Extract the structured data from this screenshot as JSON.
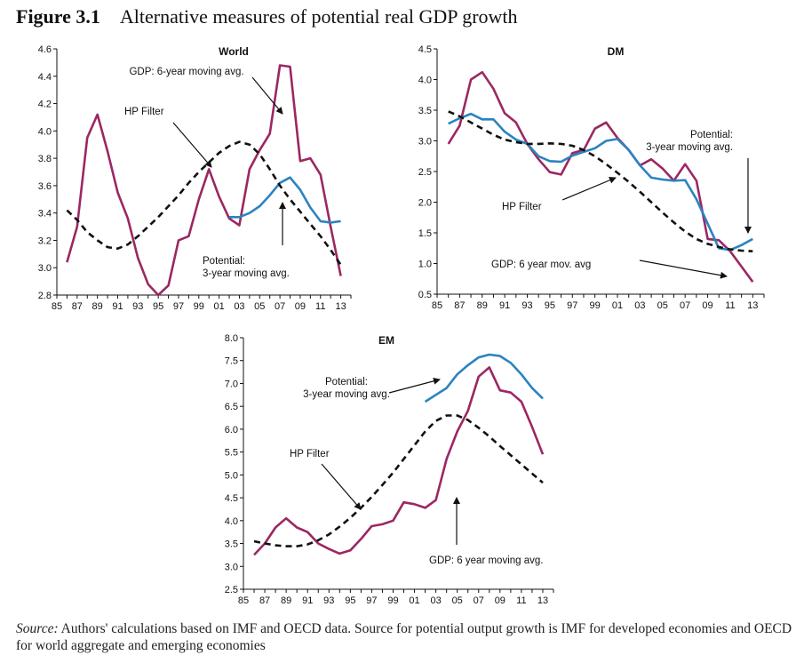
{
  "figure": {
    "number": "Figure 3.1",
    "title": "Alternative measures of potential real GDP growth"
  },
  "colors": {
    "gdp": "#9b2763",
    "potential": "#2b83c0",
    "hp": "#111111"
  },
  "chart_data": [
    {
      "type": "line",
      "title": "World",
      "x_ticks": [
        "85",
        "87",
        "89",
        "91",
        "93",
        "95",
        "97",
        "99",
        "01",
        "03",
        "05",
        "07",
        "09",
        "11",
        "13"
      ],
      "ylim": [
        2.8,
        4.6
      ],
      "y_ticks": [
        "2.8",
        "3.0",
        "3.2",
        "3.4",
        "3.6",
        "3.8",
        "4.0",
        "4.2",
        "4.4",
        "4.6"
      ],
      "series": [
        {
          "key": "gdp",
          "x": [
            1986,
            1987,
            1988,
            1989,
            1990,
            1991,
            1992,
            1993,
            1994,
            1995,
            1996,
            1997,
            1998,
            1999,
            2000,
            2001,
            2002,
            2003,
            2004,
            2005,
            2006,
            2007,
            2008,
            2009,
            2010,
            2011,
            2012,
            2013
          ],
          "y": [
            3.04,
            3.3,
            3.95,
            4.12,
            3.85,
            3.55,
            3.36,
            3.07,
            2.88,
            2.8,
            2.87,
            3.2,
            3.23,
            3.5,
            3.72,
            3.52,
            3.36,
            3.31,
            3.72,
            3.86,
            3.98,
            4.48,
            4.47,
            3.78,
            3.8,
            3.68,
            3.3,
            2.94
          ]
        },
        {
          "key": "potential",
          "x": [
            2002,
            2003,
            2004,
            2005,
            2006,
            2007,
            2008,
            2009,
            2010,
            2011,
            2012,
            2013
          ],
          "y": [
            3.37,
            3.37,
            3.4,
            3.45,
            3.53,
            3.62,
            3.66,
            3.57,
            3.44,
            3.34,
            3.33,
            3.34
          ]
        },
        {
          "key": "hp",
          "x": [
            1986,
            1987,
            1988,
            1989,
            1990,
            1991,
            1992,
            1993,
            1994,
            1995,
            1996,
            1997,
            1998,
            1999,
            2000,
            2001,
            2002,
            2003,
            2004,
            2005,
            2006,
            2007,
            2008,
            2009,
            2010,
            2011,
            2012,
            2013
          ],
          "y": [
            3.42,
            3.35,
            3.26,
            3.2,
            3.15,
            3.14,
            3.17,
            3.23,
            3.3,
            3.37,
            3.45,
            3.53,
            3.62,
            3.7,
            3.77,
            3.84,
            3.89,
            3.92,
            3.9,
            3.83,
            3.72,
            3.6,
            3.5,
            3.41,
            3.32,
            3.23,
            3.13,
            3.02
          ]
        }
      ],
      "annotations": [
        {
          "lines": [
            "GDP: 6-year moving avg."
          ]
        },
        {
          "lines": [
            "HP Filter"
          ]
        },
        {
          "lines": [
            "Potential:",
            "3-year moving avg."
          ]
        }
      ]
    },
    {
      "type": "line",
      "title": "DM",
      "x_ticks": [
        "85",
        "87",
        "89",
        "91",
        "93",
        "95",
        "97",
        "99",
        "01",
        "03",
        "05",
        "07",
        "09",
        "11",
        "13"
      ],
      "ylim": [
        0.5,
        4.5
      ],
      "y_ticks": [
        "0.5",
        "1.0",
        "1.5",
        "2.0",
        "2.5",
        "3.0",
        "3.5",
        "4.0",
        "4.5"
      ],
      "series": [
        {
          "key": "gdp",
          "x": [
            1986,
            1987,
            1988,
            1989,
            1990,
            1991,
            1992,
            1993,
            1994,
            1995,
            1996,
            1997,
            1998,
            1999,
            2000,
            2001,
            2002,
            2003,
            2004,
            2005,
            2006,
            2007,
            2008,
            2009,
            2010,
            2011,
            2012,
            2013
          ],
          "y": [
            2.95,
            3.25,
            4.0,
            4.12,
            3.85,
            3.45,
            3.3,
            2.95,
            2.7,
            2.49,
            2.45,
            2.8,
            2.85,
            3.2,
            3.3,
            3.05,
            2.85,
            2.6,
            2.7,
            2.55,
            2.35,
            2.62,
            2.35,
            1.4,
            1.38,
            1.2,
            0.95,
            0.7
          ]
        },
        {
          "key": "potential",
          "x": [
            1986,
            1987,
            1988,
            1989,
            1990,
            1991,
            1992,
            1993,
            1994,
            1995,
            1996,
            1997,
            1998,
            1999,
            2000,
            2001,
            2002,
            2003,
            2004,
            2005,
            2006,
            2007,
            2008,
            2009,
            2010,
            2011,
            2012,
            2013
          ],
          "y": [
            3.28,
            3.37,
            3.44,
            3.35,
            3.35,
            3.15,
            3.02,
            2.95,
            2.75,
            2.67,
            2.66,
            2.76,
            2.82,
            2.88,
            3.0,
            3.03,
            2.85,
            2.6,
            2.4,
            2.37,
            2.35,
            2.36,
            2.05,
            1.65,
            1.25,
            1.22,
            1.3,
            1.4
          ]
        },
        {
          "key": "hp",
          "x": [
            1986,
            1987,
            1988,
            1989,
            1990,
            1991,
            1992,
            1993,
            1994,
            1995,
            1996,
            1997,
            1998,
            1999,
            2000,
            2001,
            2002,
            2003,
            2004,
            2005,
            2006,
            2007,
            2008,
            2009,
            2010,
            2011,
            2012,
            2013
          ],
          "y": [
            3.48,
            3.4,
            3.3,
            3.2,
            3.1,
            3.02,
            2.98,
            2.95,
            2.95,
            2.96,
            2.95,
            2.92,
            2.85,
            2.75,
            2.62,
            2.48,
            2.33,
            2.17,
            2.0,
            1.83,
            1.67,
            1.52,
            1.4,
            1.32,
            1.27,
            1.23,
            1.21,
            1.2
          ]
        }
      ],
      "annotations": [
        {
          "lines": [
            "Potential:",
            "3-year moving avg."
          ]
        },
        {
          "lines": [
            "HP Filter"
          ]
        },
        {
          "lines": [
            "GDP: 6 year mov. avg"
          ]
        }
      ]
    },
    {
      "type": "line",
      "title": "EM",
      "x_ticks": [
        "85",
        "87",
        "89",
        "91",
        "93",
        "95",
        "97",
        "99",
        "01",
        "03",
        "05",
        "07",
        "09",
        "11",
        "13"
      ],
      "ylim": [
        2.5,
        8.0
      ],
      "y_ticks": [
        "2.5",
        "3.0",
        "3.5",
        "4.0",
        "4.5",
        "5.0",
        "5.5",
        "6.0",
        "6.5",
        "7.0",
        "7.5",
        "8.0"
      ],
      "series": [
        {
          "key": "gdp",
          "x": [
            1986,
            1987,
            1988,
            1989,
            1990,
            1991,
            1992,
            1993,
            1994,
            1995,
            1996,
            1997,
            1998,
            1999,
            2000,
            2001,
            2002,
            2003,
            2004,
            2005,
            2006,
            2007,
            2008,
            2009,
            2010,
            2011,
            2012,
            2013
          ],
          "y": [
            3.25,
            3.5,
            3.85,
            4.05,
            3.85,
            3.75,
            3.5,
            3.38,
            3.28,
            3.35,
            3.6,
            3.88,
            3.92,
            4.0,
            4.4,
            4.36,
            4.28,
            4.45,
            5.35,
            5.95,
            6.4,
            7.15,
            7.35,
            6.85,
            6.8,
            6.6,
            6.05,
            5.45
          ]
        },
        {
          "key": "potential",
          "x": [
            2002,
            2003,
            2004,
            2005,
            2006,
            2007,
            2008,
            2009,
            2010,
            2011,
            2012,
            2013
          ],
          "y": [
            6.6,
            6.75,
            6.9,
            7.2,
            7.4,
            7.57,
            7.63,
            7.6,
            7.45,
            7.2,
            6.9,
            6.67
          ]
        },
        {
          "key": "hp",
          "x": [
            1986,
            1987,
            1988,
            1989,
            1990,
            1991,
            1992,
            1993,
            1994,
            1995,
            1996,
            1997,
            1998,
            1999,
            2000,
            2001,
            2002,
            2003,
            2004,
            2005,
            2006,
            2007,
            2008,
            2009,
            2010,
            2011,
            2012,
            2013
          ],
          "y": [
            3.55,
            3.5,
            3.46,
            3.44,
            3.44,
            3.48,
            3.57,
            3.7,
            3.87,
            4.06,
            4.28,
            4.52,
            4.78,
            5.05,
            5.35,
            5.65,
            5.95,
            6.18,
            6.3,
            6.3,
            6.2,
            6.03,
            5.84,
            5.63,
            5.43,
            5.23,
            5.03,
            4.83
          ]
        }
      ],
      "annotations": [
        {
          "lines": [
            "Potential:",
            "3-year moving avg."
          ]
        },
        {
          "lines": [
            "HP Filter"
          ]
        },
        {
          "lines": [
            "GDP: 6 year moving avg."
          ]
        }
      ]
    }
  ],
  "source": {
    "label": "Source:",
    "text": " Authors' calculations based on IMF and OECD data. Source for potential output growth is IMF for developed economies and OECD for world aggregate and emerging economies"
  }
}
